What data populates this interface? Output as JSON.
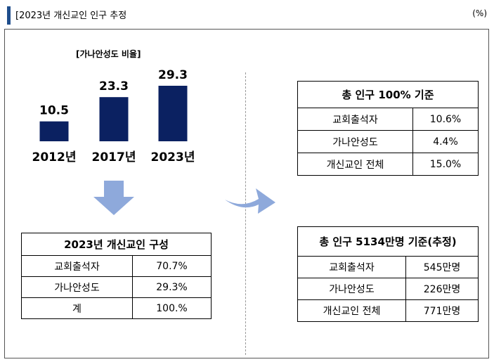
{
  "header": {
    "title": "[2023년 개신교인 인구 추정",
    "unit": "(%)"
  },
  "chart_data": {
    "type": "bar",
    "title": "[가나안성도 비율]",
    "categories": [
      "2012년",
      "2017년",
      "2023년"
    ],
    "values": [
      10.5,
      23.3,
      29.3
    ],
    "value_labels": [
      "10.5",
      "23.3",
      "29.3"
    ],
    "ylim": [
      0,
      35
    ],
    "bar_color": "#0b2161"
  },
  "table_composition": {
    "title": "2023년 개신교인 구성",
    "rows": [
      {
        "label": "교회출석자",
        "value": "70.7%"
      },
      {
        "label": "가나안성도",
        "value": "29.3%"
      },
      {
        "label": "계",
        "value": "100.%"
      }
    ]
  },
  "table_total_pct": {
    "title": "총 인구 100% 기준",
    "rows": [
      {
        "label": "교회출석자",
        "value": "10.6%"
      },
      {
        "label": "가나안성도",
        "value": "4.4%"
      },
      {
        "label": "개신교인 전체",
        "value": "15.0%"
      }
    ]
  },
  "table_total_pop": {
    "title": "총 인구 5134만명 기준(추정)",
    "rows": [
      {
        "label": "교회출석자",
        "value": "545만명"
      },
      {
        "label": "가나안성도",
        "value": "226만명"
      },
      {
        "label": "개신교인 전체",
        "value": "771만명"
      }
    ]
  },
  "colors": {
    "arrow": "#8ea9db",
    "accent": "#1f4e8c"
  }
}
